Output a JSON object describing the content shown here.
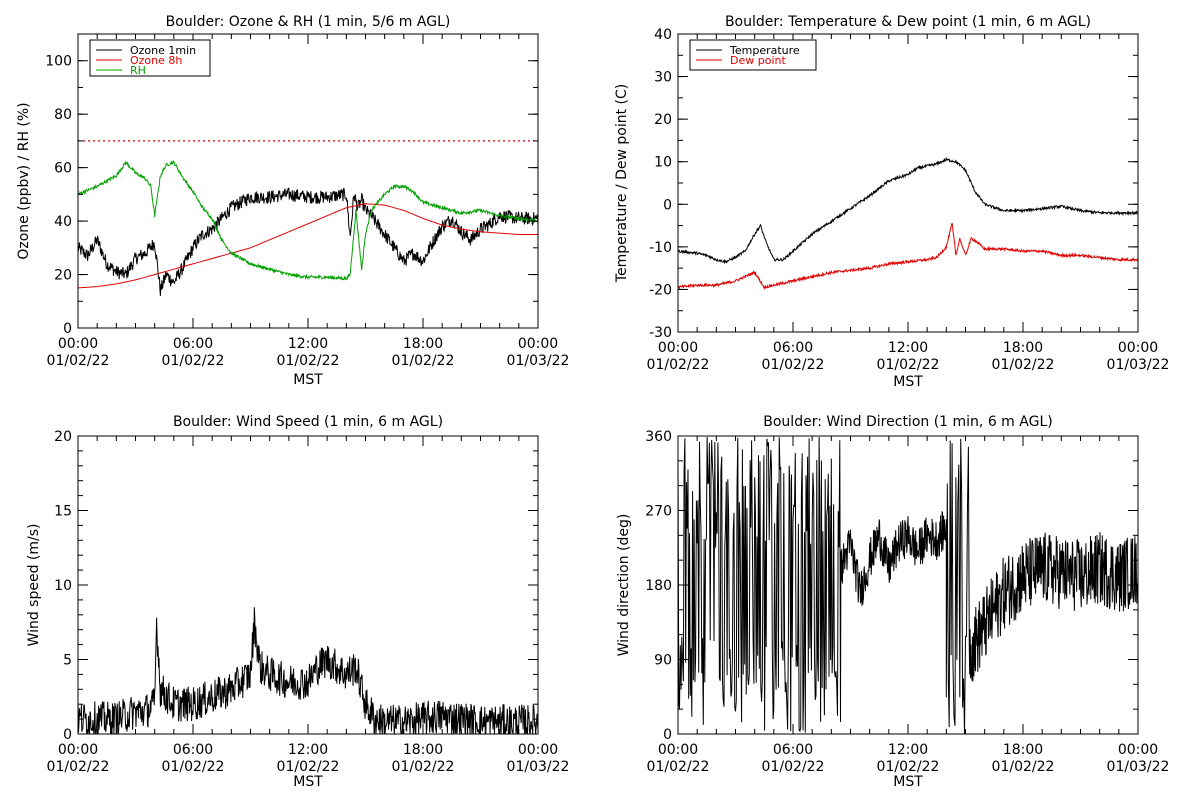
{
  "chart_data": [
    {
      "type": "line",
      "title": "Boulder: Ozone & RH (1 min, 5/6 m AGL)",
      "xlabel": "MST",
      "ylabel": "Ozone (ppbv) / RH (%)",
      "x_ticks": [
        {
          "time": "00:00",
          "date": "01/02/22"
        },
        {
          "time": "06:00",
          "date": "01/02/22"
        },
        {
          "time": "12:00",
          "date": "01/02/22"
        },
        {
          "time": "18:00",
          "date": "01/02/22"
        },
        {
          "time": "00:00",
          "date": "01/03/22"
        }
      ],
      "xlim": [
        0,
        24
      ],
      "ylim": [
        0,
        110
      ],
      "y_ticks": [
        0,
        20,
        40,
        60,
        80,
        100
      ],
      "y_minor_step": 10,
      "grid": false,
      "legend": "top-left",
      "reference_line": {
        "y": 70,
        "color": "#e00000",
        "style": "dotted"
      },
      "series": [
        {
          "name": "Ozone 1min",
          "color": "#000000",
          "noise": 2.5,
          "x": [
            0,
            0.5,
            1,
            1.5,
            2,
            2.5,
            3,
            3.5,
            4,
            4.3,
            4.6,
            5,
            5.5,
            6,
            6.5,
            7,
            7.5,
            8,
            8.5,
            9,
            10,
            11,
            12,
            13,
            14,
            14.2,
            14.4,
            14.6,
            14.8,
            15,
            15.3,
            16,
            16.5,
            17,
            17.5,
            18,
            18.5,
            19,
            19.5,
            20,
            20.5,
            21,
            21.5,
            22,
            23,
            24
          ],
          "values": [
            30,
            27,
            33,
            24,
            21,
            20,
            26,
            28,
            32,
            14,
            20,
            17,
            23,
            30,
            35,
            37,
            41,
            45,
            47,
            49,
            49,
            50,
            49,
            49,
            50,
            34,
            50,
            45,
            48,
            44,
            42,
            35,
            30,
            25,
            28,
            25,
            32,
            38,
            41,
            36,
            33,
            37,
            39,
            42,
            41,
            41
          ]
        },
        {
          "name": "Ozone 8h",
          "color": "#e00000",
          "noise": 0,
          "x": [
            0,
            1,
            2,
            3,
            4,
            5,
            6,
            7,
            8,
            9,
            10,
            11,
            12,
            13,
            14,
            15,
            16,
            17,
            18,
            19,
            20,
            21,
            22,
            23,
            24
          ],
          "values": [
            15,
            15.5,
            16.5,
            18,
            20,
            22,
            24,
            26,
            28,
            30,
            33,
            36,
            39,
            42,
            45,
            46.5,
            46,
            44,
            41,
            38.5,
            37,
            36,
            35.5,
            35,
            35
          ]
        },
        {
          "name": "RH",
          "color": "#00a000",
          "noise": 0.6,
          "x": [
            0,
            1,
            2,
            2.5,
            3,
            3.5,
            3.8,
            4,
            4.3,
            4.6,
            5,
            5.5,
            6,
            6.5,
            7,
            7.5,
            8,
            9,
            10,
            11,
            12,
            13,
            14,
            14.2,
            14.5,
            14.8,
            15,
            15.3,
            16,
            16.5,
            17,
            17.5,
            18,
            19,
            20,
            21,
            22,
            23,
            24
          ],
          "values": [
            50,
            53,
            57,
            62,
            58,
            56,
            53,
            42,
            57,
            61,
            62,
            56,
            51,
            45,
            41,
            33,
            28,
            24,
            22,
            20,
            19,
            19,
            18.5,
            20,
            44,
            22,
            35,
            44,
            50,
            53,
            53,
            51,
            47,
            45,
            43,
            44,
            42,
            41,
            40
          ]
        }
      ]
    },
    {
      "type": "line",
      "title": "Boulder: Temperature & Dew point (1 min, 6 m AGL)",
      "xlabel": "MST",
      "ylabel": "Temperature / Dew point (C)",
      "x_ticks": [
        {
          "time": "00:00",
          "date": "01/02/22"
        },
        {
          "time": "06:00",
          "date": "01/02/22"
        },
        {
          "time": "12:00",
          "date": "01/02/22"
        },
        {
          "time": "18:00",
          "date": "01/02/22"
        },
        {
          "time": "00:00",
          "date": "01/03/22"
        }
      ],
      "xlim": [
        0,
        24
      ],
      "ylim": [
        -30,
        40
      ],
      "y_ticks": [
        -30,
        -20,
        -10,
        0,
        10,
        20,
        30,
        40
      ],
      "y_minor_step": 5,
      "grid": false,
      "legend": "top-left",
      "series": [
        {
          "name": "Temperature",
          "color": "#000000",
          "noise": 0.3,
          "x": [
            0,
            1,
            1.5,
            2,
            2.5,
            3,
            3.5,
            4,
            4.3,
            4.6,
            5,
            5.5,
            6,
            7,
            8,
            9,
            10,
            11,
            12,
            12.5,
            13,
            13.5,
            14,
            14.5,
            15,
            15.5,
            16,
            17,
            18,
            19,
            20,
            21,
            22,
            23,
            24
          ],
          "values": [
            -11,
            -11.5,
            -12,
            -13,
            -13.5,
            -12.5,
            -11,
            -7,
            -5,
            -9,
            -13,
            -13,
            -11,
            -7,
            -4,
            -1,
            2,
            5.5,
            7,
            8.5,
            9,
            9.5,
            10.5,
            10,
            8,
            3,
            0,
            -1.5,
            -1.5,
            -1,
            -0.5,
            -1.5,
            -2,
            -2,
            -2
          ]
        },
        {
          "name": "Dew point",
          "color": "#e00000",
          "noise": 0.3,
          "x": [
            0,
            1,
            2,
            3,
            4,
            4.5,
            5,
            6,
            7,
            8,
            9,
            10,
            11,
            12,
            13,
            13.5,
            14,
            14.3,
            14.5,
            14.7,
            15,
            15.3,
            15.5,
            16,
            17,
            18,
            19,
            20,
            21,
            22,
            23,
            24
          ],
          "values": [
            -19.5,
            -19,
            -19,
            -18,
            -16,
            -19.5,
            -19,
            -18,
            -17,
            -16,
            -15.5,
            -15,
            -14,
            -13.5,
            -13,
            -12.5,
            -10,
            -4.5,
            -12,
            -8,
            -12,
            -8,
            -8.5,
            -10.5,
            -10.5,
            -11,
            -11,
            -12,
            -12,
            -12.5,
            -13,
            -13
          ]
        }
      ]
    },
    {
      "type": "line",
      "title": "Boulder: Wind Speed (1 min, 6 m AGL)",
      "xlabel": "MST",
      "ylabel": "Wind speed (m/s)",
      "x_ticks": [
        {
          "time": "00:00",
          "date": "01/02/22"
        },
        {
          "time": "06:00",
          "date": "01/02/22"
        },
        {
          "time": "12:00",
          "date": "01/02/22"
        },
        {
          "time": "18:00",
          "date": "01/02/22"
        },
        {
          "time": "00:00",
          "date": "01/03/22"
        }
      ],
      "xlim": [
        0,
        24
      ],
      "ylim": [
        0,
        20
      ],
      "y_ticks": [
        0,
        5,
        10,
        15,
        20
      ],
      "y_minor_step": 1,
      "grid": false,
      "legend": "none",
      "series": [
        {
          "name": "Wind speed",
          "color": "#000000",
          "noise": 1.2,
          "clip_min": 0,
          "x": [
            0,
            1,
            2,
            3,
            3.5,
            4,
            4.1,
            4.3,
            5,
            6,
            7,
            8,
            8.5,
            9,
            9.2,
            9.5,
            10,
            11,
            12,
            12.5,
            13,
            14,
            14.5,
            15,
            15.5,
            16,
            17,
            18,
            19,
            20,
            21,
            22,
            23,
            24
          ],
          "values": [
            1,
            1,
            1,
            1.5,
            1.5,
            2,
            7.5,
            3,
            2,
            2,
            2.5,
            3,
            3.5,
            4,
            7.5,
            4.5,
            4,
            3.5,
            3.5,
            4.5,
            5,
            4,
            4.5,
            2,
            1,
            0.8,
            0.8,
            1,
            1.2,
            1,
            0.8,
            0.8,
            0.8,
            0.8
          ]
        }
      ]
    },
    {
      "type": "line",
      "title": "Boulder: Wind Direction (1 min, 6 m AGL)",
      "xlabel": "MST",
      "ylabel": "Wind direction (deg)",
      "x_ticks": [
        {
          "time": "00:00",
          "date": "01/02/22"
        },
        {
          "time": "06:00",
          "date": "01/02/22"
        },
        {
          "time": "12:00",
          "date": "01/02/22"
        },
        {
          "time": "18:00",
          "date": "01/02/22"
        },
        {
          "time": "00:00",
          "date": "01/03/22"
        }
      ],
      "xlim": [
        0,
        24
      ],
      "ylim": [
        0,
        360
      ],
      "y_ticks": [
        0,
        90,
        180,
        270,
        360
      ],
      "y_minor_step": 30,
      "grid": false,
      "legend": "none",
      "segments": [
        {
          "from": 0,
          "to": 8.5,
          "mode": "jump",
          "min": 0,
          "max": 360,
          "step": 0.04
        },
        {
          "from": 8.5,
          "to": 14,
          "mode": "trend",
          "x": [
            8.5,
            9,
            9.5,
            10,
            10.5,
            11,
            11.5,
            12,
            12.5,
            13,
            13.5,
            14
          ],
          "values": [
            200,
            230,
            170,
            210,
            240,
            200,
            230,
            240,
            220,
            240,
            235,
            250
          ],
          "noise": 25
        },
        {
          "from": 14,
          "to": 15.2,
          "mode": "jump",
          "min": 0,
          "max": 360,
          "step": 0.05
        },
        {
          "from": 15.2,
          "to": 24,
          "mode": "trend",
          "x": [
            15.2,
            16,
            17,
            18,
            19,
            20,
            21,
            22,
            23,
            24
          ],
          "values": [
            100,
            130,
            170,
            190,
            200,
            195,
            190,
            200,
            190,
            200
          ],
          "noise": 45
        }
      ],
      "series": [
        {
          "name": "Wind direction",
          "color": "#000000"
        }
      ]
    }
  ]
}
